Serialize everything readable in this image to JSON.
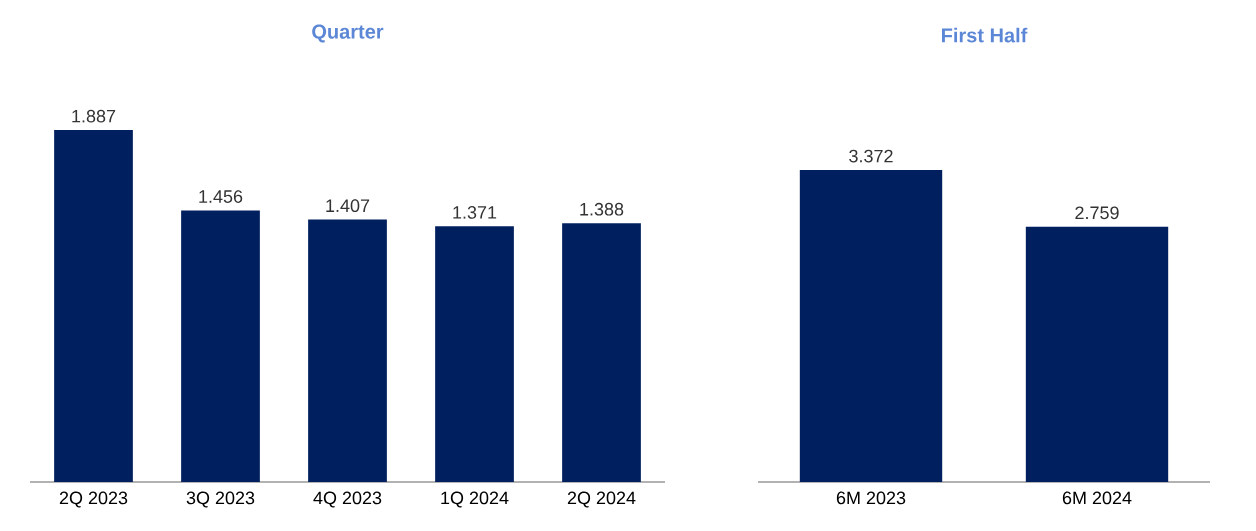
{
  "chart_data": [
    {
      "type": "bar",
      "title": "Quarter",
      "categories": [
        "2Q 2023",
        "3Q 2023",
        "4Q 2023",
        "1Q 2024",
        "2Q 2024"
      ],
      "values": [
        1.887,
        1.456,
        1.407,
        1.371,
        1.388
      ],
      "color": "#001f5f",
      "data_labels": true
    },
    {
      "type": "bar",
      "title": "First Half",
      "categories": [
        "6M 2023",
        "6M 2024"
      ],
      "values": [
        3.372,
        2.759
      ],
      "color": "#001f5f",
      "data_labels": true
    }
  ]
}
